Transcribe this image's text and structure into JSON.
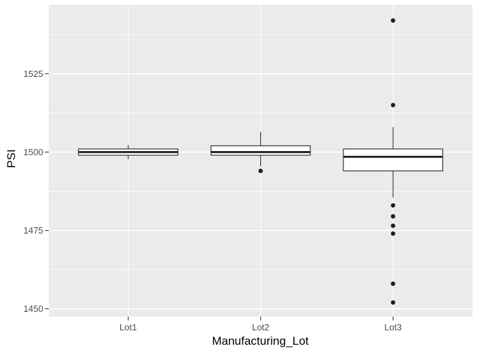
{
  "chart_data": {
    "type": "boxplot",
    "title": "",
    "xlabel": "Manufacturing_Lot",
    "ylabel": "PSI",
    "categories": [
      "Lot1",
      "Lot2",
      "Lot3"
    ],
    "series": [
      {
        "category": "Lot1",
        "whisker_low": 1497.7,
        "q1": 1499,
        "median": 1500,
        "q3": 1501,
        "whisker_high": 1502.3,
        "outliers": []
      },
      {
        "category": "Lot2",
        "whisker_low": 1495.5,
        "q1": 1499,
        "median": 1500,
        "q3": 1502,
        "whisker_high": 1506.5,
        "outliers": [
          1494
        ]
      },
      {
        "category": "Lot3",
        "whisker_low": 1485.5,
        "q1": 1494,
        "median": 1498.5,
        "q3": 1501,
        "whisker_high": 1508,
        "outliers": [
          1542,
          1515,
          1483,
          1479.5,
          1476.5,
          1474,
          1458,
          1452
        ]
      }
    ],
    "y_axis": {
      "ticks": [
        1450,
        1475,
        1500,
        1525
      ],
      "minor_ticks": [
        1462.5,
        1487.5,
        1512.5,
        1537.5
      ],
      "domain": [
        1447.5,
        1547
      ]
    },
    "grid": true,
    "legend_position": "none",
    "style": {
      "panel_bg": "#EBEBEB",
      "grid_color": "#FFFFFF",
      "box_fill": "#FFFFFF",
      "box_border": "#333333",
      "median_color": "#1F1F1F",
      "outlier_color": "#1F1F1F",
      "tick_mark_color": "#333333",
      "tick_label_color": "#4D4D4D",
      "axis_title_color": "#000000"
    }
  }
}
